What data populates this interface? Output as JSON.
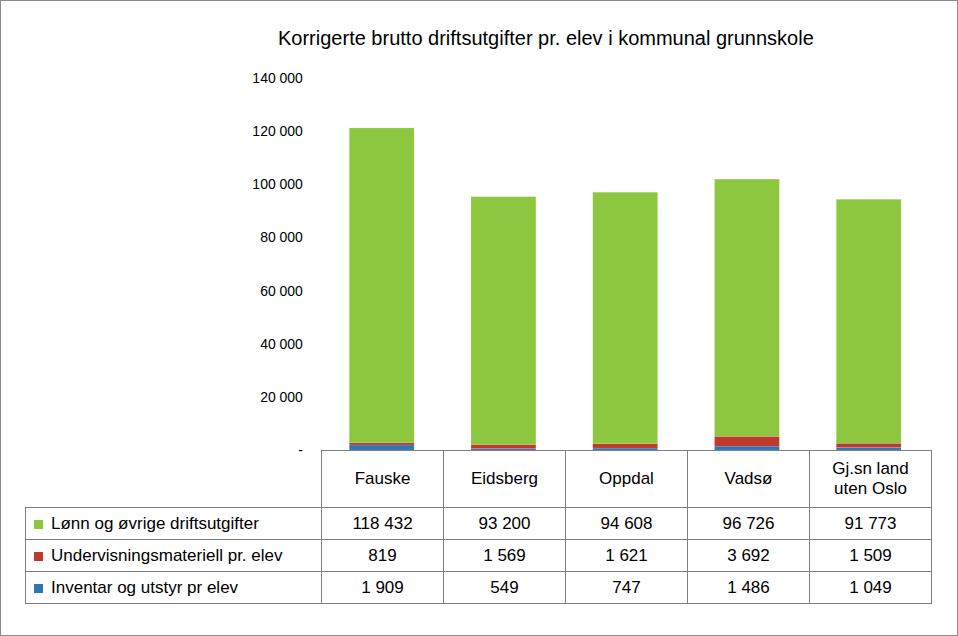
{
  "chart_data": {
    "type": "bar",
    "stacked": true,
    "grid": false,
    "title": "Korrigerte brutto driftsutgifter pr. elev i kommunal grunnskole",
    "categories": [
      "Fauske",
      "Eidsberg",
      "Oppdal",
      "Vadsø",
      "Gj.sn land uten Oslo"
    ],
    "series": [
      {
        "name": "Lønn og øvrige driftsutgifter",
        "color": "#8dc63f",
        "values": [
          118432,
          93200,
          94608,
          96726,
          91773
        ],
        "value_labels": [
          "118 432",
          "93 200",
          "94 608",
          "96 726",
          "91 773"
        ]
      },
      {
        "name": "Undervisningsmateriell pr. elev",
        "color": "#c0392b",
        "values": [
          819,
          1569,
          1621,
          3692,
          1509
        ],
        "value_labels": [
          "819",
          "1 569",
          "1 621",
          "3 692",
          "1 509"
        ]
      },
      {
        "name": "Inventar og utstyr pr elev",
        "color": "#2e75b6",
        "values": [
          1909,
          549,
          747,
          1486,
          1049
        ],
        "value_labels": [
          "1 909",
          "549",
          "747",
          "1 486",
          "1 049"
        ]
      }
    ],
    "ylim": [
      0,
      140000
    ],
    "yticks": [
      {
        "value": 0,
        "label": "-"
      },
      {
        "value": 20000,
        "label": "20 000"
      },
      {
        "value": 40000,
        "label": "40 000"
      },
      {
        "value": 60000,
        "label": "60 000"
      },
      {
        "value": 80000,
        "label": "80 000"
      },
      {
        "value": 100000,
        "label": "100 000"
      },
      {
        "value": 120000,
        "label": "120 000"
      },
      {
        "value": 140000,
        "label": "140 000"
      }
    ]
  }
}
